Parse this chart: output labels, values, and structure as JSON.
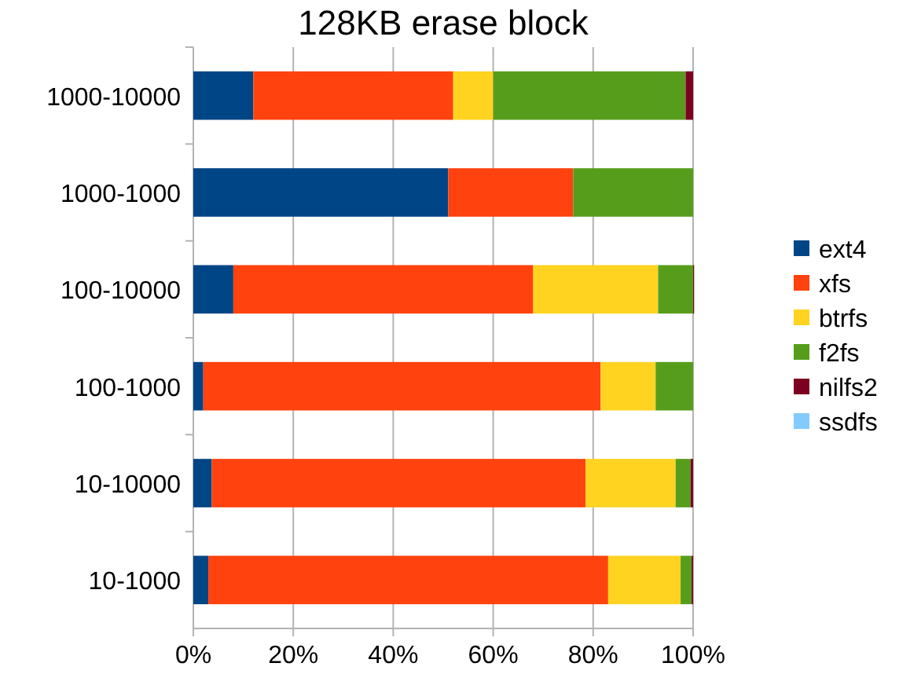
{
  "chart_data": {
    "type": "bar",
    "title": "128KB erase block",
    "orientation": "horizontal",
    "stacked": true,
    "categories": [
      "1000-10000",
      "1000-1000",
      "100-10000",
      "100-1000",
      "10-10000",
      "10-1000"
    ],
    "series": [
      {
        "name": "ext4",
        "color": "#004586",
        "values": [
          12,
          51,
          8,
          2,
          3.7,
          3
        ]
      },
      {
        "name": "xfs",
        "color": "#ff420e",
        "values": [
          40,
          25,
          60,
          79.5,
          74.8,
          80
        ]
      },
      {
        "name": "btrfs",
        "color": "#ffd320",
        "values": [
          8,
          0,
          25,
          11,
          18,
          14.5
        ]
      },
      {
        "name": "f2fs",
        "color": "#579d1c",
        "values": [
          38.5,
          24,
          7,
          7.5,
          3,
          2.2
        ]
      },
      {
        "name": "nilfs2",
        "color": "#7e0021",
        "values": [
          1.5,
          0,
          0.2,
          0,
          0.5,
          0.3
        ]
      },
      {
        "name": "ssdfs",
        "color": "#83caff",
        "values": [
          0,
          0,
          0,
          0,
          0,
          0
        ]
      }
    ],
    "xlim": [
      0,
      100
    ],
    "xticks": [
      {
        "value": 0,
        "label": "0%"
      },
      {
        "value": 20,
        "label": "20%"
      },
      {
        "value": 40,
        "label": "40%"
      },
      {
        "value": 60,
        "label": "60%"
      },
      {
        "value": 80,
        "label": "80%"
      },
      {
        "value": 100,
        "label": "100%"
      }
    ],
    "grid": "x",
    "legend": "right"
  }
}
